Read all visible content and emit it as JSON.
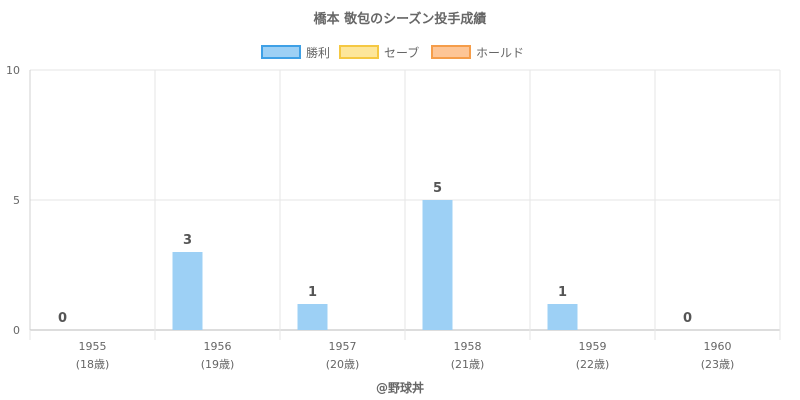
{
  "chart_data": {
    "type": "bar",
    "title": "橋本 敬包のシーズン投手成績",
    "categories": [
      "1955",
      "1956",
      "1957",
      "1958",
      "1959",
      "1960"
    ],
    "category_sublabels": [
      "(18歳)",
      "(19歳)",
      "(20歳)",
      "(21歳)",
      "(22歳)",
      "(23歳)"
    ],
    "series": [
      {
        "name": "勝利",
        "values": [
          0,
          3,
          1,
          5,
          1,
          0
        ],
        "color": "#9dd0f5",
        "border": "#3ea0e6"
      },
      {
        "name": "セーブ",
        "values": [
          0,
          0,
          0,
          0,
          0,
          0
        ],
        "color": "#fde69a",
        "border": "#f5c842"
      },
      {
        "name": "ホールド",
        "values": [
          0,
          0,
          0,
          0,
          0,
          0
        ],
        "color": "#fdc596",
        "border": "#f59d4a"
      }
    ],
    "data_labels": [
      "0",
      "3",
      "1",
      "5",
      "1",
      "0"
    ],
    "ylim": [
      0,
      10
    ],
    "yticks": [
      "0",
      "5",
      "10"
    ],
    "grid": true,
    "legend": "top-center",
    "footer": "@野球丼"
  }
}
